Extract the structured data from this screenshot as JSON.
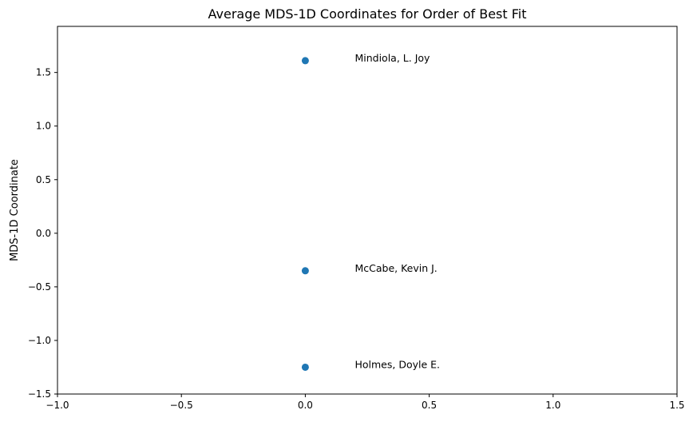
{
  "chart_data": {
    "type": "scatter",
    "title": "Average MDS-1D Coordinates for Order of Best Fit",
    "xlabel": "",
    "ylabel": "MDS-1D Coordinate",
    "xlim": [
      -1.0,
      1.5
    ],
    "ylim": [
      -1.5,
      1.93
    ],
    "x_ticks": [
      -1.0,
      -0.5,
      0.0,
      0.5,
      1.0,
      1.5
    ],
    "x_tick_labels": [
      "−1.0",
      "−0.5",
      "0.0",
      "0.5",
      "1.0",
      "1.5"
    ],
    "y_ticks": [
      1.5,
      1.0,
      0.5,
      0.0,
      -0.5,
      -1.0,
      -1.5
    ],
    "y_tick_labels": [
      "1.5",
      "1.0",
      "0.5",
      "0.0",
      "−0.5",
      "−1.0",
      "−1.5"
    ],
    "grid": false,
    "marker_color": "#1f77b4",
    "points": [
      {
        "x": 0.0,
        "y": 1.61,
        "label": "Mindiola, L. Joy"
      },
      {
        "x": 0.0,
        "y": -0.35,
        "label": "McCabe, Kevin J."
      },
      {
        "x": 0.0,
        "y": -1.25,
        "label": "Holmes, Doyle E."
      }
    ],
    "annotation_offset_x": 0.2
  }
}
